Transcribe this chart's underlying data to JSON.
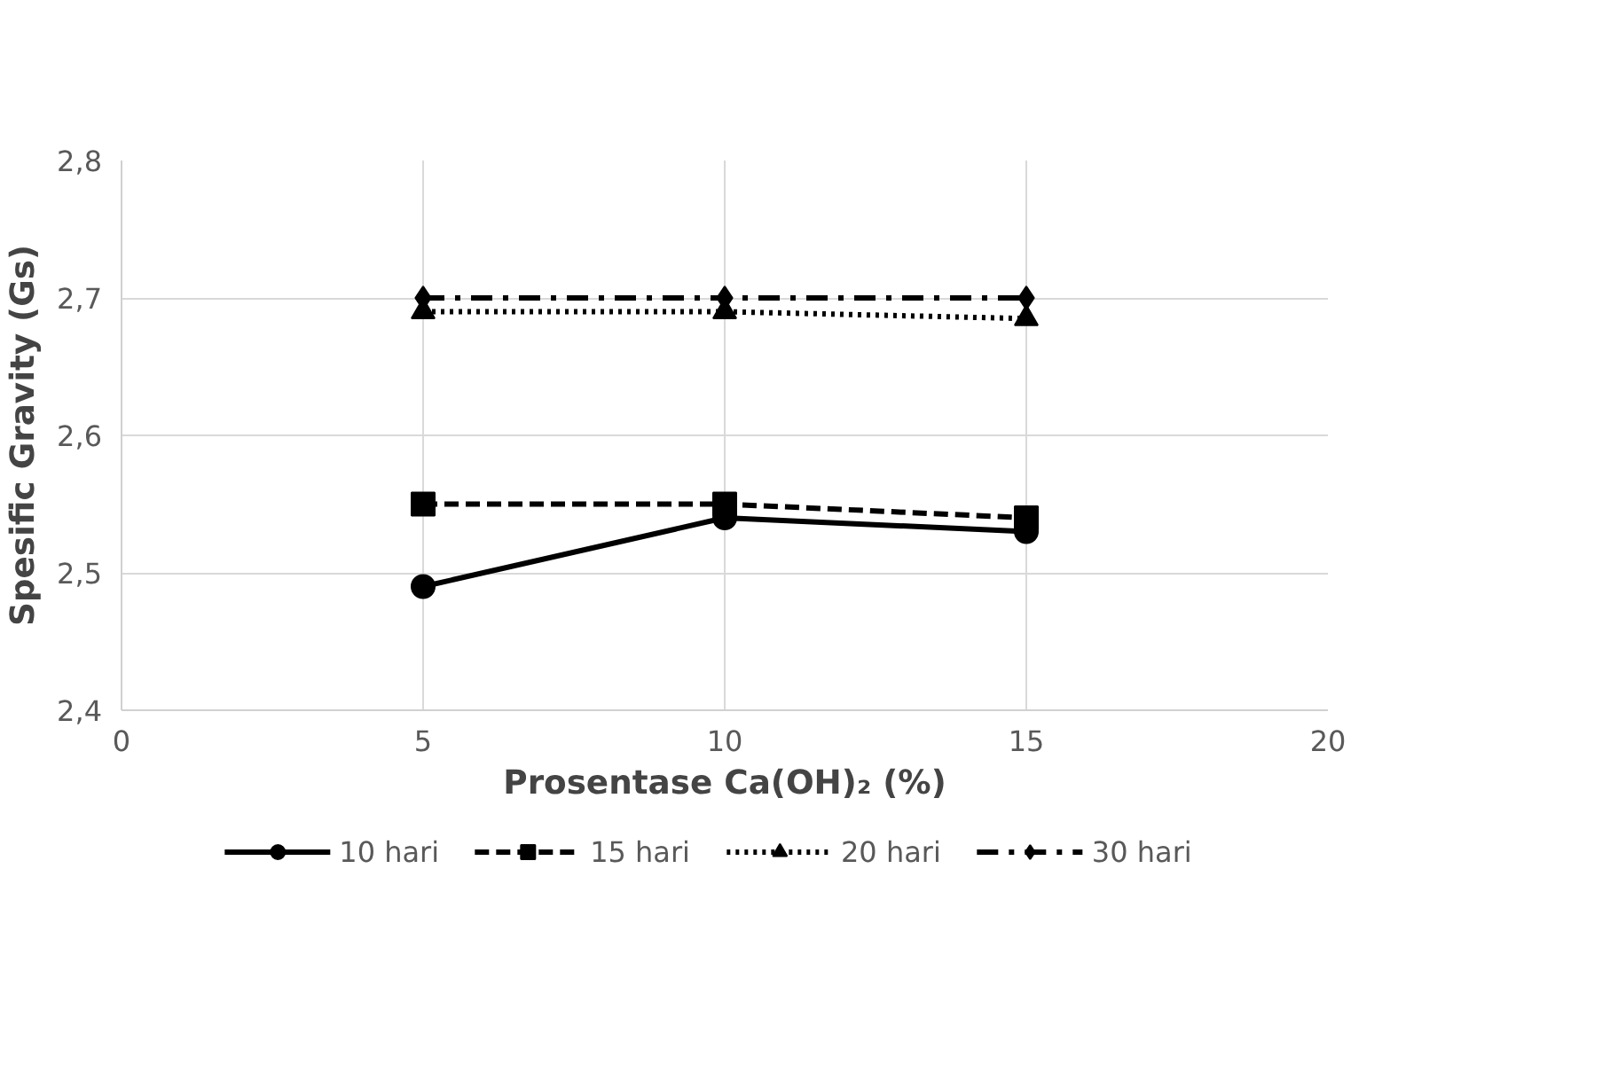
{
  "chart_data": {
    "type": "line",
    "xlabel": "Prosentase Ca(OH)₂ (%)",
    "ylabel": "Spesific Gravity (Gs)",
    "x": [
      5,
      10,
      15
    ],
    "series": [
      {
        "name": "10 hari",
        "color": "#000000",
        "values": [
          2.49,
          2.54,
          2.53
        ],
        "marker": "circle",
        "line_style": "solid"
      },
      {
        "name": "15 hari",
        "color": "#000000",
        "values": [
          2.55,
          2.55,
          2.54
        ],
        "marker": "square",
        "line_style": "dashed"
      },
      {
        "name": "20 hari",
        "color": "#000000",
        "values": [
          2.69,
          2.69,
          2.685
        ],
        "marker": "triangle",
        "line_style": "dotted"
      },
      {
        "name": "30 hari",
        "color": "#000000",
        "values": [
          2.7,
          2.7,
          2.7
        ],
        "marker": "diamond",
        "line_style": "dashdot"
      }
    ],
    "xlim": [
      0,
      20
    ],
    "xticks": [
      0,
      5,
      10,
      15,
      20
    ],
    "ylim": [
      2.4,
      2.8
    ],
    "yticks": [
      {
        "value": 2.4,
        "label": "2,4"
      },
      {
        "value": 2.5,
        "label": "2,5"
      },
      {
        "value": 2.6,
        "label": "2,6"
      },
      {
        "value": 2.7,
        "label": "2,7"
      },
      {
        "value": 2.8,
        "label": "2,8"
      }
    ],
    "grid": true,
    "legend": "bottom"
  }
}
